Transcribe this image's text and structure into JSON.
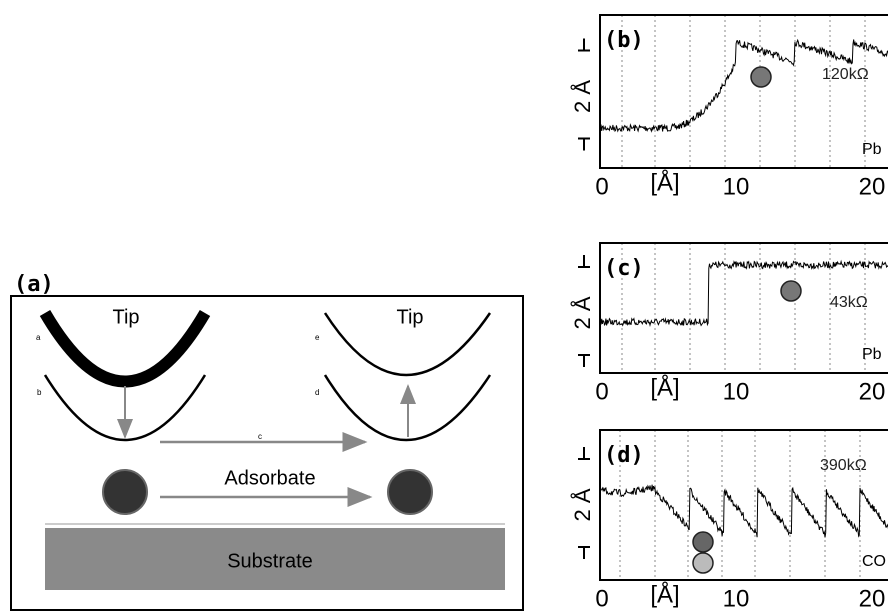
{
  "panel_a": {
    "label": "(a)",
    "tip_left": "Tip",
    "tip_right": "Tip",
    "curve_a": "a",
    "curve_b": "b",
    "curve_c": "c",
    "curve_d": "d",
    "curve_e": "e",
    "adsorbate": "Adsorbate",
    "substrate": "Substrate"
  },
  "panels": [
    {
      "label": "(b)",
      "resistance": "120kΩ",
      "material": "Pb",
      "y_scale": "2 Å",
      "x_unit": "[Å]",
      "xticks": [
        0,
        10,
        20
      ]
    },
    {
      "label": "(c)",
      "resistance": "43kΩ",
      "material": "Pb",
      "y_scale": "2 Å",
      "x_unit": "[Å]",
      "xticks": [
        0,
        10,
        20
      ]
    },
    {
      "label": "(d)",
      "resistance": "390kΩ",
      "material": "CO",
      "y_scale": "2 Å",
      "x_unit": "[Å]",
      "xticks": [
        0,
        10,
        20
      ]
    }
  ]
}
